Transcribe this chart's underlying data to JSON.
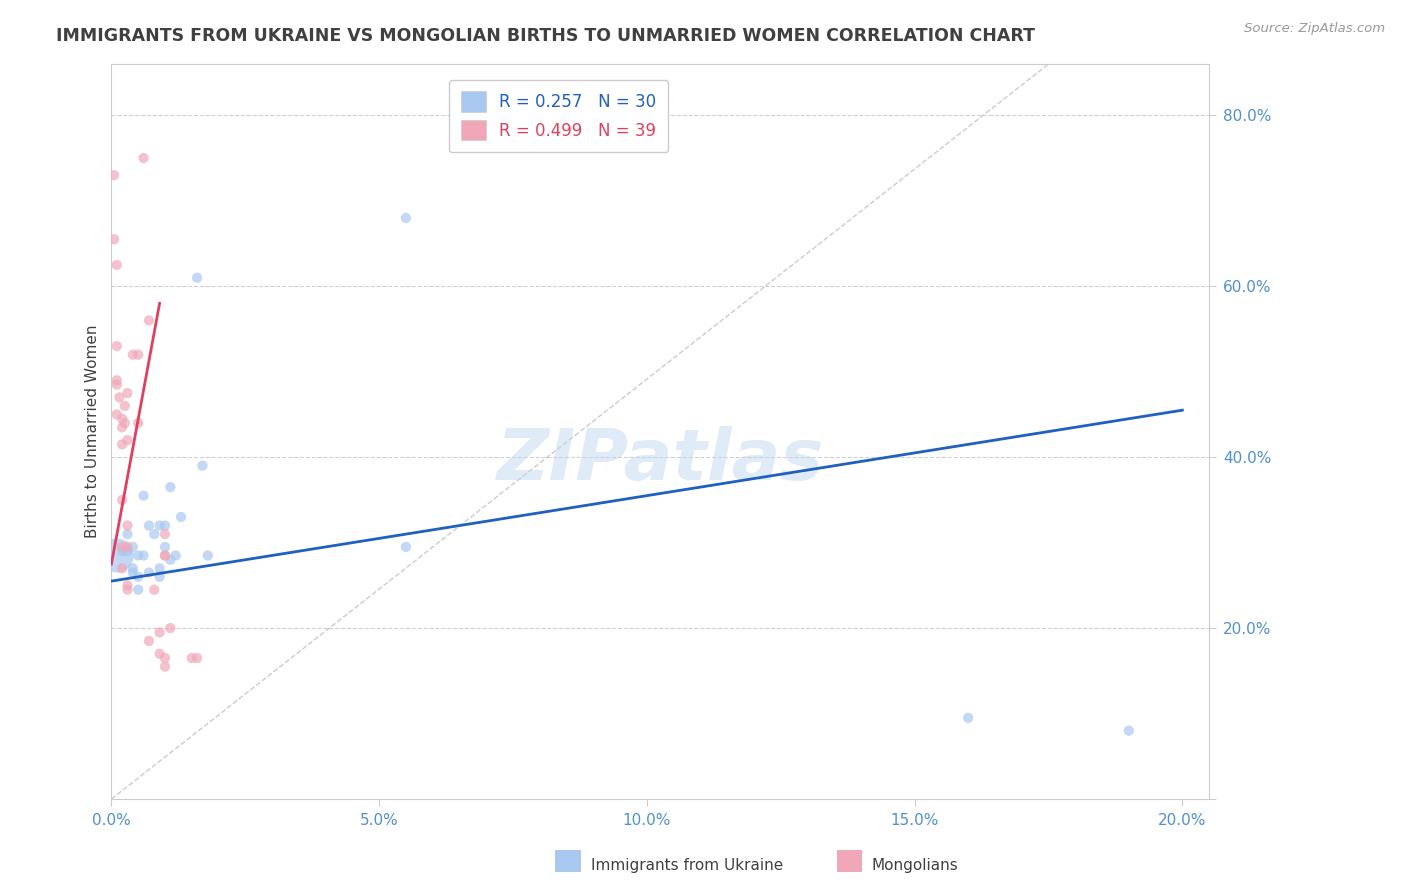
{
  "title": "IMMIGRANTS FROM UKRAINE VS MONGOLIAN BIRTHS TO UNMARRIED WOMEN CORRELATION CHART",
  "source": "Source: ZipAtlas.com",
  "ylabel_label": "Births to Unmarried Women",
  "ukraine_scatter": [
    [
      0.001,
      0.285
    ],
    [
      0.002,
      0.29
    ],
    [
      0.003,
      0.31
    ],
    [
      0.003,
      0.29
    ],
    [
      0.004,
      0.295
    ],
    [
      0.004,
      0.27
    ],
    [
      0.004,
      0.265
    ],
    [
      0.005,
      0.285
    ],
    [
      0.005,
      0.26
    ],
    [
      0.005,
      0.245
    ],
    [
      0.006,
      0.355
    ],
    [
      0.006,
      0.285
    ],
    [
      0.007,
      0.32
    ],
    [
      0.007,
      0.265
    ],
    [
      0.008,
      0.31
    ],
    [
      0.009,
      0.32
    ],
    [
      0.009,
      0.27
    ],
    [
      0.009,
      0.26
    ],
    [
      0.01,
      0.32
    ],
    [
      0.01,
      0.295
    ],
    [
      0.011,
      0.365
    ],
    [
      0.011,
      0.28
    ],
    [
      0.012,
      0.285
    ],
    [
      0.013,
      0.33
    ],
    [
      0.016,
      0.61
    ],
    [
      0.017,
      0.39
    ],
    [
      0.018,
      0.285
    ],
    [
      0.055,
      0.68
    ],
    [
      0.055,
      0.295
    ],
    [
      0.16,
      0.095
    ],
    [
      0.19,
      0.08
    ]
  ],
  "ukraine_large_idx": 0,
  "ukraine_trendline": {
    "x": [
      0.0,
      0.2
    ],
    "y": [
      0.255,
      0.455
    ]
  },
  "mongolia_scatter": [
    [
      0.0005,
      0.73
    ],
    [
      0.0005,
      0.655
    ],
    [
      0.001,
      0.625
    ],
    [
      0.001,
      0.53
    ],
    [
      0.001,
      0.49
    ],
    [
      0.001,
      0.485
    ],
    [
      0.001,
      0.45
    ],
    [
      0.0015,
      0.47
    ],
    [
      0.002,
      0.445
    ],
    [
      0.002,
      0.435
    ],
    [
      0.002,
      0.415
    ],
    [
      0.002,
      0.35
    ],
    [
      0.002,
      0.295
    ],
    [
      0.002,
      0.27
    ],
    [
      0.0025,
      0.46
    ],
    [
      0.0025,
      0.44
    ],
    [
      0.003,
      0.475
    ],
    [
      0.003,
      0.42
    ],
    [
      0.003,
      0.32
    ],
    [
      0.003,
      0.295
    ],
    [
      0.003,
      0.25
    ],
    [
      0.003,
      0.245
    ],
    [
      0.004,
      0.52
    ],
    [
      0.005,
      0.52
    ],
    [
      0.005,
      0.44
    ],
    [
      0.006,
      0.75
    ],
    [
      0.007,
      0.56
    ],
    [
      0.007,
      0.185
    ],
    [
      0.008,
      0.245
    ],
    [
      0.009,
      0.195
    ],
    [
      0.009,
      0.17
    ],
    [
      0.01,
      0.155
    ],
    [
      0.01,
      0.165
    ],
    [
      0.01,
      0.285
    ],
    [
      0.01,
      0.285
    ],
    [
      0.01,
      0.31
    ],
    [
      0.011,
      0.2
    ],
    [
      0.015,
      0.165
    ],
    [
      0.016,
      0.165
    ]
  ],
  "mongolia_trendline": {
    "x": [
      0.0,
      0.009
    ],
    "y": [
      0.275,
      0.58
    ]
  },
  "blue_color": "#a8c8f0",
  "pink_color": "#f0a8b8",
  "trendline_blue": "#2060c0",
  "trendline_pink": "#e04060",
  "watermark_text": "ZIPatlas",
  "background_color": "#ffffff",
  "grid_color": "#d0d0d0",
  "axis_color": "#5090d0",
  "title_color": "#404040",
  "xlim": [
    0.0,
    0.205
  ],
  "ylim": [
    0.0,
    0.86
  ],
  "xticks": [
    0.0,
    0.05,
    0.1,
    0.15,
    0.2
  ],
  "yticks": [
    0.0,
    0.2,
    0.4,
    0.6,
    0.8
  ]
}
